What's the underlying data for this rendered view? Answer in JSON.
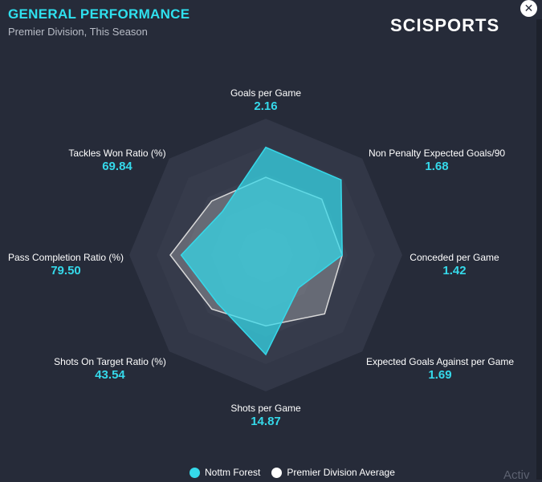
{
  "header": {
    "title": "GENERAL PERFORMANCE",
    "subtitle": "Premier Division, This Season",
    "brand": "SCISPORTS",
    "close_icon": "close-icon"
  },
  "chart_data": {
    "type": "radar",
    "axes": [
      {
        "label": "Goals per Game",
        "value": "2.16"
      },
      {
        "label": "Non Penalty Expected Goals/90",
        "value": "1.68"
      },
      {
        "label": "Conceded per Game",
        "value": "1.42"
      },
      {
        "label": "Expected Goals Against per Game",
        "value": "1.69"
      },
      {
        "label": "Shots per Game",
        "value": "14.87"
      },
      {
        "label": "Shots On Target Ratio (%)",
        "value": "43.54"
      },
      {
        "label": "Pass Completion Ratio (%)",
        "value": "79.50"
      },
      {
        "label": "Tackles Won Ratio (%)",
        "value": "69.84"
      }
    ],
    "rings": 5,
    "series": [
      {
        "name": "Nottm Forest",
        "color": "#35d9ea",
        "values": [
          0.79,
          0.78,
          0.56,
          0.34,
          0.73,
          0.5,
          0.62,
          0.45
        ]
      },
      {
        "name": "Premier Division Average",
        "color": "#d9d9d9",
        "values": [
          0.57,
          0.58,
          0.56,
          0.61,
          0.52,
          0.56,
          0.7,
          0.56
        ]
      }
    ]
  },
  "legend": {
    "items": [
      "Nottm Forest",
      "Premier Division Average"
    ]
  },
  "watermark": "Activ"
}
